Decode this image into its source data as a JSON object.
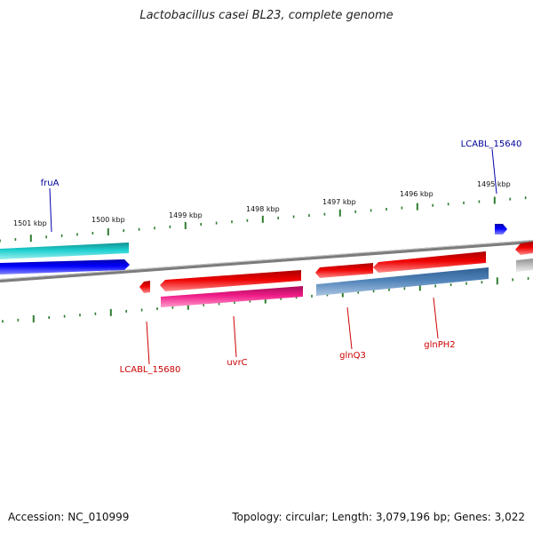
{
  "title": "Lactobacillus casei BL23, complete genome",
  "footer": {
    "accession": "Accession: NC_010999",
    "summary": "Topology: circular; Length: 3,079,196 bp; Genes: 3,022"
  },
  "colors": {
    "backbone": "#8a8a8a",
    "tick": "#2e7d2e",
    "gene_red": "#e00000",
    "gene_blue": "#0000ee",
    "gene_cyan": "#19c1c1",
    "gene_magenta": "#e6187e",
    "gene_steelblue": "#4d7fb5",
    "gene_gray": "#b5b5b5",
    "label_blue": "#00009a",
    "label_red": "#cc0000"
  },
  "scale": {
    "ticks_kbp": [
      1501,
      1500,
      1499,
      1498,
      1497,
      1496,
      1495
    ],
    "labels": [
      "1501 kbp",
      "1500 kbp",
      "1499 kbp",
      "1498 kbp",
      "1497 kbp",
      "1496 kbp",
      "1495 kbp"
    ]
  },
  "genes": [
    {
      "name": "fruA",
      "strand": "+",
      "color": "cyan",
      "labeled": true,
      "label_color": "blue"
    },
    {
      "name": "",
      "strand": "+",
      "color": "blue",
      "labeled": false
    },
    {
      "name": "LCABL_15640",
      "strand": "+",
      "color": "blue",
      "labeled": true,
      "label_color": "blue"
    },
    {
      "name": "LCABL_15680",
      "strand": "-",
      "color": "red",
      "labeled": true,
      "label_color": "red"
    },
    {
      "name": "uvrC",
      "strand": "-",
      "color": "red",
      "labeled": true,
      "label_color": "red"
    },
    {
      "name": "",
      "strand": "-",
      "color": "magenta",
      "labeled": false
    },
    {
      "name": "glnQ3",
      "strand": "-",
      "color": "red",
      "labeled": true,
      "label_color": "red"
    },
    {
      "name": "glnPH2",
      "strand": "-",
      "color": "red",
      "labeled": true,
      "label_color": "red"
    },
    {
      "name": "",
      "strand": "-",
      "color": "steelblue",
      "labeled": false
    },
    {
      "name": "",
      "strand": "-",
      "color": "red",
      "labeled": false
    },
    {
      "name": "",
      "strand": "-",
      "color": "gray",
      "labeled": false
    }
  ]
}
